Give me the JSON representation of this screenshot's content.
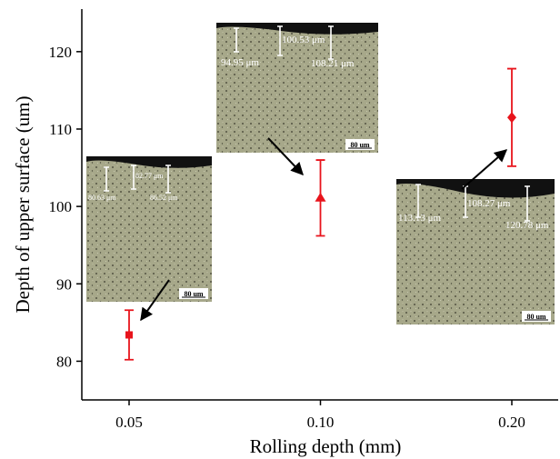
{
  "chart_data": {
    "type": "scatter",
    "xlabel": "Rolling depth (mm)",
    "ylabel": "Depth of upper surface (um)",
    "categories": [
      "0.05",
      "0.10",
      "0.20"
    ],
    "ylim": [
      75,
      125.5
    ],
    "yticks": [
      80,
      90,
      100,
      110,
      120
    ],
    "series": [
      {
        "color": "#e8141c",
        "values": [
          83.4,
          101.1,
          111.5
        ],
        "errors": [
          3.2,
          4.9,
          6.3
        ],
        "markers": [
          "square",
          "triangle",
          "diamond"
        ]
      }
    ],
    "insets": [
      {
        "measurements": [
          "80.63 μm",
          "82.77 μm",
          "86.52 μm"
        ],
        "scale_bar": "80 um"
      },
      {
        "measurements": [
          "94.95 μm",
          "100.53 μm",
          "108.21 μm"
        ],
        "scale_bar": "80 um"
      },
      {
        "measurements": [
          "113.13 μm",
          "108.27 μm",
          "120.78 μm"
        ],
        "scale_bar": "80 um"
      }
    ]
  }
}
